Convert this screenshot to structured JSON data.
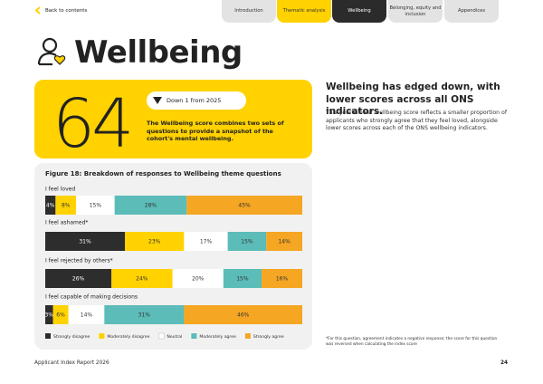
{
  "nav": {
    "back": "Back to contents",
    "tabs": [
      "Introduction",
      "Thematic analysis",
      "Wellbeing",
      "Belonging, equity and inclusion",
      "Appendices"
    ]
  },
  "header": {
    "title": "Wellbeing"
  },
  "score": {
    "value": 64,
    "change": "Down 1 from 2025",
    "description": "The Wellbeing score combines two sets of questions to provide a snapshot of the cohort's mental wellbeing."
  },
  "summary": {
    "heading": "Wellbeing has edged down, with lower scores across all ONS indicators.",
    "body": "This year's lower wellbeing score reflects a smaller proportion of applicants who strongly agree that they feel loved, alongside lower scores across each of the ONS wellbeing indicators."
  },
  "chart_data": {
    "type": "stacked-bar",
    "title": "Figure 18: Breakdown of responses to Wellbeing theme questions",
    "categories": [
      "I feel loved",
      "I feel ashamed*",
      "I feel rejected by others*",
      "I feel capable of making decisions"
    ],
    "series": [
      {
        "name": "Strongly disagree",
        "color": "#2d2d2d",
        "values": [
          4,
          31,
          26,
          3
        ],
        "value_labels": [
          "4%",
          "31%",
          "26%",
          "3%"
        ]
      },
      {
        "name": "Moderately disagree",
        "color": "#ffd200",
        "values": [
          8,
          23,
          24,
          6
        ],
        "value_labels": [
          "8%",
          "23%",
          "24%",
          "6%"
        ]
      },
      {
        "name": "Neutral",
        "color": "#ffffff",
        "values": [
          15,
          17,
          20,
          14
        ],
        "value_labels": [
          "15%",
          "17%",
          "20%",
          "14%"
        ]
      },
      {
        "name": "Moderately agree",
        "color": "#5bbcb8",
        "values": [
          28,
          15,
          15,
          31
        ],
        "value_labels": [
          "28%",
          "15%",
          "15%",
          "31%"
        ]
      },
      {
        "name": "Strongly agree",
        "color": "#f5a623",
        "values": [
          45,
          14,
          16,
          46
        ],
        "value_labels": [
          "45%",
          "14%",
          "16%",
          "46%"
        ]
      }
    ]
  },
  "footnote": "*For this question, agreement indicates a negative response; the score for this question was reversed when calculating the index score",
  "footer": {
    "report": "Applicant Index Report 2026",
    "page": 24
  }
}
